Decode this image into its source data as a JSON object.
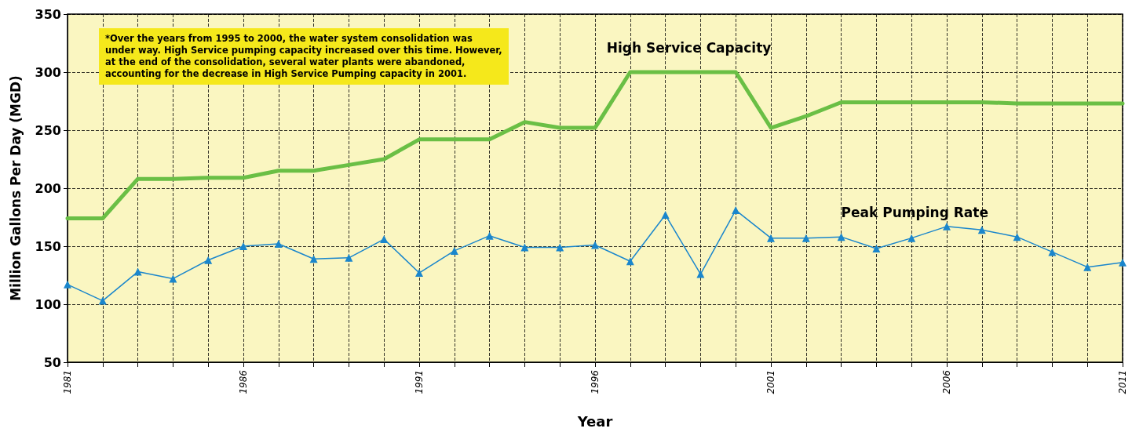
{
  "chart_data": {
    "type": "line",
    "xlabel": "Year",
    "ylabel": "Million Gallons Per Day (MGD)",
    "annotations": [
      "*Over the years from 1995 to 2000, the water system consolidation was under way.  High Service pumping capacity increased over this time. However, at the end of the consolidation, several water plants were abandoned, accounting for the decrease in High Service Pumping capacity in 2001."
    ],
    "x": [
      1981,
      1982,
      1983,
      1984,
      1985,
      1986,
      1987,
      1988,
      1989,
      1990,
      1991,
      1992,
      1993,
      1994,
      1995,
      1996,
      1997,
      1998,
      1999,
      2000,
      2001,
      2002,
      2003,
      2004,
      2005,
      2006,
      2007,
      2008,
      2009,
      2010,
      2011
    ],
    "series": [
      {
        "name": "High Service Capacity",
        "color": "#6abf45",
        "marker": "none",
        "values": [
          174,
          174,
          208,
          208,
          209,
          209,
          215,
          215,
          220,
          225,
          242,
          242,
          242,
          257,
          252,
          252,
          300,
          300,
          300,
          300,
          252,
          262,
          274,
          274,
          274,
          274,
          274,
          273,
          273,
          273,
          273
        ]
      },
      {
        "name": "Peak Pumping Rate",
        "color": "#1a86cc",
        "marker": "triangle",
        "values": [
          117,
          103,
          128,
          122,
          138,
          150,
          152,
          139,
          140,
          156,
          127,
          146,
          159,
          149,
          149,
          151,
          137,
          177,
          126,
          181,
          157,
          157,
          158,
          148,
          157,
          167,
          164,
          158,
          145,
          132,
          136
        ]
      }
    ],
    "xlim": [
      1981,
      2011
    ],
    "xticks": [
      1981,
      {
        "value": 1982,
        "label": null
      },
      {
        "value": 1983,
        "label": null
      },
      {
        "value": 1984,
        "label": null
      },
      {
        "value": 1985,
        "label": null
      },
      1986,
      {
        "value": 1987,
        "label": null
      },
      {
        "value": 1988,
        "label": null
      },
      {
        "value": 1989,
        "label": null
      },
      {
        "value": 1990,
        "label": null
      },
      1991,
      {
        "value": 1992,
        "label": null
      },
      {
        "value": 1993,
        "label": null
      },
      {
        "value": 1994,
        "label": null
      },
      {
        "value": 1995,
        "label": null
      },
      1996,
      {
        "value": 1997,
        "label": null
      },
      {
        "value": 1998,
        "label": null
      },
      {
        "value": 1999,
        "label": null
      },
      {
        "value": 2000,
        "label": null
      },
      2001,
      {
        "value": 2002,
        "label": null
      },
      {
        "value": 2003,
        "label": null
      },
      {
        "value": 2004,
        "label": null
      },
      {
        "value": 2005,
        "label": null
      },
      2006,
      {
        "value": 2007,
        "label": null
      },
      {
        "value": 2008,
        "label": null
      },
      {
        "value": 2009,
        "label": null
      },
      {
        "value": 2010,
        "label": null
      },
      2011
    ],
    "ylim": [
      50,
      350
    ],
    "yticks": [
      50,
      100,
      150,
      200,
      250,
      300,
      350
    ],
    "grid": true,
    "legend": false
  }
}
